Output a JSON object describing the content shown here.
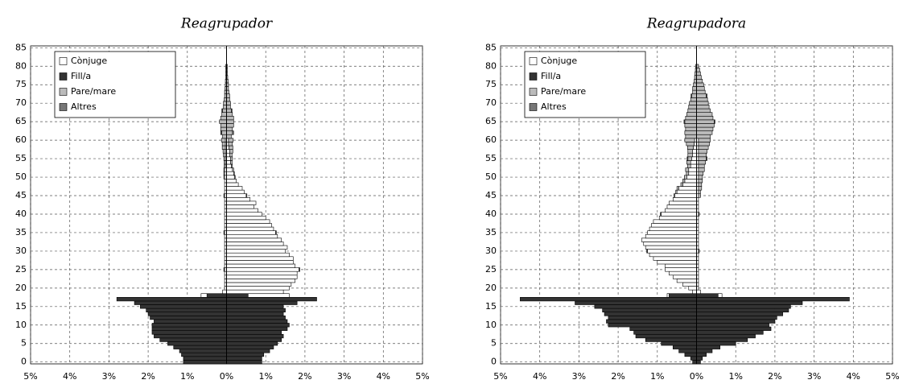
{
  "chart_data": [
    {
      "type": "pyramid",
      "title": "Reagrupador",
      "legend": "upper left",
      "grid": true,
      "xlim": [
        -5,
        5
      ],
      "ylim": [
        -0.5,
        85.5
      ],
      "xticks": [
        {
          "value": -5,
          "label": "5%"
        },
        {
          "value": -4,
          "label": "4%"
        },
        {
          "value": -3,
          "label": "3%"
        },
        {
          "value": -2,
          "label": "2%"
        },
        {
          "value": -1,
          "label": "1%"
        },
        {
          "value": 0,
          "label": "0%"
        },
        {
          "value": 1,
          "label": "1%"
        },
        {
          "value": 2,
          "label": "2%"
        },
        {
          "value": 3,
          "label": "3%"
        },
        {
          "value": 4,
          "label": "4%"
        },
        {
          "value": 5,
          "label": "5%"
        }
      ],
      "yticks": [
        0,
        5,
        10,
        15,
        20,
        25,
        30,
        35,
        40,
        45,
        50,
        55,
        60,
        65,
        70,
        75,
        80,
        85
      ],
      "series": [
        {
          "name": "Fill/a",
          "color": "#333333",
          "ages": [
            0,
            1,
            2,
            3,
            4,
            5,
            6,
            7,
            8,
            9,
            10,
            11,
            12,
            13,
            14,
            15,
            16,
            17,
            18
          ],
          "left": [
            -1.1,
            -1.1,
            -1.15,
            -1.2,
            -1.35,
            -1.5,
            -1.7,
            -1.85,
            -1.9,
            -1.9,
            -1.9,
            -1.85,
            -1.95,
            -2.0,
            -2.05,
            -2.2,
            -2.35,
            -2.8,
            -0.5
          ],
          "right": [
            0.9,
            0.9,
            0.95,
            1.1,
            1.2,
            1.3,
            1.4,
            1.45,
            1.4,
            1.55,
            1.6,
            1.55,
            1.5,
            1.45,
            1.5,
            1.45,
            1.8,
            2.3,
            0.55
          ]
        },
        {
          "name": "Cònjuge",
          "color": "#ffffff",
          "ages": [
            18,
            19,
            20,
            21,
            22,
            23,
            24,
            25,
            26,
            27,
            28,
            29,
            30,
            31,
            32,
            33,
            34,
            35,
            36,
            37,
            38,
            39,
            40,
            41,
            42,
            43,
            44,
            45,
            46,
            47,
            48,
            49,
            50,
            51,
            52,
            53,
            54,
            55,
            56,
            57,
            58,
            59,
            60
          ],
          "left": [
            -0.15,
            -0.1,
            -0.05,
            -0.05,
            -0.05,
            -0.05,
            -0.05,
            -0.05,
            -0.05,
            -0.05,
            -0.05,
            -0.05,
            -0.05,
            -0.05,
            -0.05,
            -0.05,
            -0.05,
            -0.05,
            -0.05,
            -0.05,
            -0.05,
            -0.05,
            -0.05,
            -0.05,
            -0.05,
            -0.05,
            -0.05,
            -0.05,
            -0.05,
            -0.05,
            -0.05,
            -0.05,
            -0.05,
            -0.05,
            -0.05,
            -0.03,
            -0.03,
            -0.03,
            -0.03,
            -0.03,
            -0.03,
            -0.03,
            -0.03
          ],
          "right": [
            1.05,
            1.45,
            1.6,
            1.65,
            1.75,
            1.8,
            1.8,
            1.85,
            1.75,
            1.7,
            1.7,
            1.6,
            1.5,
            1.55,
            1.45,
            1.4,
            1.3,
            1.25,
            1.2,
            1.15,
            1.1,
            1.0,
            0.9,
            0.8,
            0.7,
            0.75,
            0.6,
            0.5,
            0.45,
            0.4,
            0.3,
            0.25,
            0.2,
            0.18,
            0.15,
            0.12,
            0.1,
            0.1,
            0.08,
            0.08,
            0.06,
            0.05,
            0.05
          ]
        },
        {
          "name": "Pare/mare",
          "color": "#bbbbbb",
          "ages": [
            50,
            51,
            52,
            53,
            54,
            55,
            56,
            57,
            58,
            59,
            60,
            61,
            62,
            63,
            64,
            65,
            66,
            67,
            68,
            69,
            70,
            71,
            72,
            73,
            74,
            75,
            76,
            77,
            78,
            79,
            80
          ],
          "left": [
            -0.02,
            -0.02,
            -0.02,
            -0.03,
            -0.03,
            -0.04,
            -0.05,
            -0.06,
            -0.08,
            -0.08,
            -0.1,
            -0.1,
            -0.12,
            -0.15,
            -0.15,
            -0.18,
            -0.15,
            -0.12,
            -0.1,
            -0.08,
            -0.08,
            -0.06,
            -0.05,
            -0.05,
            -0.04,
            -0.03,
            -0.03,
            -0.02,
            -0.02,
            -0.02,
            -0.02
          ],
          "right": [
            0.02,
            0.02,
            0.03,
            0.03,
            0.04,
            0.05,
            0.06,
            0.08,
            0.1,
            0.1,
            0.12,
            0.12,
            0.15,
            0.15,
            0.18,
            0.18,
            0.18,
            0.15,
            0.12,
            0.1,
            0.1,
            0.08,
            0.08,
            0.06,
            0.05,
            0.05,
            0.04,
            0.03,
            0.02,
            0.02,
            0.02
          ]
        },
        {
          "name": "Altres",
          "color": "#777777",
          "ages": [
            25,
            35,
            45,
            62,
            68
          ],
          "left": [
            -0.02,
            -0.02,
            -0.02,
            -0.03,
            -0.02
          ],
          "right": [
            0.02,
            0.02,
            0.02,
            0.03,
            0.02
          ]
        }
      ]
    },
    {
      "type": "pyramid",
      "title": "Reagrupadora",
      "legend": "upper left",
      "grid": true,
      "xlim": [
        -5,
        5
      ],
      "ylim": [
        -0.5,
        85.5
      ],
      "xticks": [
        {
          "value": -5,
          "label": "5%"
        },
        {
          "value": -4,
          "label": "4%"
        },
        {
          "value": -3,
          "label": "3%"
        },
        {
          "value": -2,
          "label": "2%"
        },
        {
          "value": -1,
          "label": "1%"
        },
        {
          "value": 0,
          "label": "0%"
        },
        {
          "value": 1,
          "label": "1%"
        },
        {
          "value": 2,
          "label": "2%"
        },
        {
          "value": 3,
          "label": "3%"
        },
        {
          "value": 4,
          "label": "4%"
        },
        {
          "value": 5,
          "label": "5%"
        }
      ],
      "yticks": [
        0,
        5,
        10,
        15,
        20,
        25,
        30,
        35,
        40,
        45,
        50,
        55,
        60,
        65,
        70,
        75,
        80,
        85
      ],
      "series": [
        {
          "name": "Fill/a",
          "color": "#333333",
          "ages": [
            0,
            1,
            2,
            3,
            4,
            5,
            6,
            7,
            8,
            9,
            10,
            11,
            12,
            13,
            14,
            15,
            16,
            17,
            18
          ],
          "left": [
            -0.1,
            -0.15,
            -0.3,
            -0.45,
            -0.6,
            -0.9,
            -1.3,
            -1.55,
            -1.6,
            -1.7,
            -2.25,
            -2.3,
            -2.25,
            -2.35,
            -2.4,
            -2.6,
            -3.1,
            -4.5,
            -0.7
          ],
          "right": [
            0.1,
            0.15,
            0.25,
            0.4,
            0.6,
            1.0,
            1.3,
            1.5,
            1.7,
            1.9,
            1.85,
            2.0,
            2.05,
            2.2,
            2.35,
            2.4,
            2.7,
            3.9,
            0.55
          ]
        },
        {
          "name": "Cònjuge",
          "color": "#ffffff",
          "ages": [
            18,
            19,
            20,
            21,
            22,
            23,
            24,
            25,
            26,
            27,
            28,
            29,
            30,
            31,
            32,
            33,
            34,
            35,
            36,
            37,
            38,
            39,
            40,
            41,
            42,
            43,
            44,
            45,
            46,
            47,
            48,
            49,
            50,
            51,
            52,
            53,
            54,
            55,
            56,
            57,
            58,
            59,
            60
          ],
          "left": [
            -0.05,
            -0.1,
            -0.2,
            -0.35,
            -0.5,
            -0.6,
            -0.7,
            -0.8,
            -0.8,
            -1.0,
            -1.1,
            -1.2,
            -1.25,
            -1.3,
            -1.35,
            -1.4,
            -1.3,
            -1.25,
            -1.2,
            -1.15,
            -1.1,
            -0.95,
            -0.9,
            -0.8,
            -0.75,
            -0.7,
            -0.6,
            -0.55,
            -0.5,
            -0.45,
            -0.35,
            -0.3,
            -0.25,
            -0.2,
            -0.2,
            -0.15,
            -0.15,
            -0.12,
            -0.1,
            -0.1,
            -0.08,
            -0.06,
            -0.05
          ],
          "right": [
            0.1,
            0.1,
            0.05,
            0.05,
            0.05,
            0.05,
            0.05,
            0.05,
            0.05,
            0.05,
            0.05,
            0.05,
            0.05,
            0.05,
            0.05,
            0.05,
            0.05,
            0.05,
            0.05,
            0.05,
            0.05,
            0.05,
            0.05,
            0.05,
            0.05,
            0.05,
            0.05,
            0.05,
            0.05,
            0.05,
            0.05,
            0.05,
            0.05,
            0.05,
            0.05,
            0.05,
            0.05,
            0.05,
            0.05,
            0.05,
            0.05,
            0.05,
            0.05
          ]
        },
        {
          "name": "Pare/mare",
          "color": "#bbbbbb",
          "ages": [
            45,
            46,
            47,
            48,
            49,
            50,
            51,
            52,
            53,
            54,
            55,
            56,
            57,
            58,
            59,
            60,
            61,
            62,
            63,
            64,
            65,
            66,
            67,
            68,
            69,
            70,
            71,
            72,
            73,
            74,
            75,
            76,
            77,
            78,
            79,
            80
          ],
          "left": [
            -0.03,
            -0.03,
            -0.05,
            -0.05,
            -0.05,
            -0.06,
            -0.06,
            -0.08,
            -0.08,
            -0.1,
            -0.1,
            -0.12,
            -0.12,
            -0.15,
            -0.2,
            -0.25,
            -0.28,
            -0.3,
            -0.28,
            -0.3,
            -0.3,
            -0.28,
            -0.25,
            -0.22,
            -0.2,
            -0.18,
            -0.15,
            -0.12,
            -0.1,
            -0.1,
            -0.08,
            -0.06,
            -0.05,
            -0.04,
            -0.03,
            -0.02
          ],
          "right": [
            0.05,
            0.05,
            0.08,
            0.08,
            0.1,
            0.1,
            0.12,
            0.15,
            0.15,
            0.18,
            0.2,
            0.2,
            0.22,
            0.25,
            0.28,
            0.3,
            0.35,
            0.4,
            0.42,
            0.45,
            0.45,
            0.42,
            0.4,
            0.35,
            0.32,
            0.3,
            0.28,
            0.25,
            0.22,
            0.2,
            0.18,
            0.15,
            0.12,
            0.1,
            0.08,
            0.05
          ]
        },
        {
          "name": "Altres",
          "color": "#777777",
          "ages": [
            30,
            40,
            55,
            65,
            72
          ],
          "left": [
            -0.02,
            -0.02,
            -0.02,
            -0.02,
            -0.02
          ],
          "right": [
            0.02,
            0.02,
            0.02,
            0.02,
            0.02
          ]
        }
      ]
    }
  ]
}
